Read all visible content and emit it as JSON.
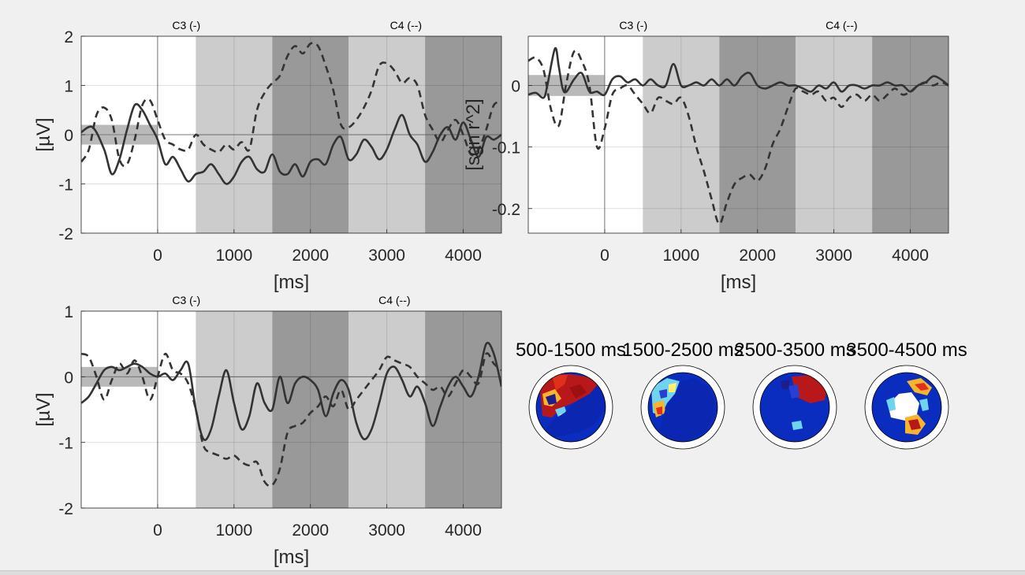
{
  "chart_data": [
    {
      "type": "line",
      "id": "erp-top",
      "xlabel": "[ms]",
      "ylabel": "[µV]",
      "xlim": [
        -1000,
        4500
      ],
      "ylim": [
        -2,
        2
      ],
      "xticks": [
        0,
        1000,
        2000,
        3000,
        4000
      ],
      "xtick_labels": [
        "0",
        "1000",
        "2000",
        "3000",
        "4000"
      ],
      "yticks": [
        2,
        1,
        0,
        -1,
        -2
      ],
      "ytick_labels": [
        "2",
        "1",
        "0",
        "-1",
        "-2"
      ],
      "baseline_band": [
        -0.2,
        0.2
      ],
      "shaded_intervals": [
        {
          "from": 500,
          "to": 1500,
          "color": "#cccccc"
        },
        {
          "from": 1500,
          "to": 2500,
          "color": "#999999"
        },
        {
          "from": 2500,
          "to": 3500,
          "color": "#cccccc"
        },
        {
          "from": 3500,
          "to": 4500,
          "color": "#999999"
        }
      ],
      "channel_labels": [
        {
          "text": "C3 (-)",
          "x": 375
        },
        {
          "text": "C4 (--)",
          "x": 3250
        }
      ],
      "series": [
        {
          "name": "C3 (-)",
          "style": "solid",
          "x": [
            -1000,
            -850,
            -700,
            -600,
            -500,
            -400,
            -300,
            -200,
            -100,
            0,
            100,
            200,
            300,
            400,
            500,
            600,
            700,
            800,
            900,
            1000,
            1100,
            1200,
            1300,
            1400,
            1500,
            1600,
            1700,
            1800,
            1900,
            2000,
            2100,
            2200,
            2300,
            2400,
            2500,
            2600,
            2700,
            2800,
            2900,
            3000,
            3100,
            3200,
            3300,
            3400,
            3500,
            3600,
            3700,
            3800,
            3900,
            4000,
            4100,
            4200,
            4300,
            4400,
            4500
          ],
          "values": [
            0.05,
            0.15,
            -0.3,
            -0.8,
            -0.5,
            0.1,
            0.6,
            0.5,
            0.2,
            -0.1,
            -0.6,
            -0.45,
            -0.7,
            -0.95,
            -0.8,
            -0.75,
            -0.6,
            -0.8,
            -1.0,
            -0.85,
            -0.55,
            -0.45,
            -0.7,
            -0.75,
            -0.4,
            -0.75,
            -0.8,
            -0.6,
            -0.85,
            -0.55,
            -0.5,
            -0.6,
            -0.2,
            -0.05,
            -0.5,
            -0.4,
            -0.1,
            -0.25,
            -0.5,
            -0.3,
            0.1,
            0.4,
            0.0,
            -0.2,
            -0.55,
            -0.35,
            0.0,
            0.15,
            -0.1,
            0.25,
            -0.1,
            -0.45,
            -0.05,
            -0.1,
            0.0
          ]
        },
        {
          "name": "C4 (--)",
          "style": "dashed",
          "x": [
            -1000,
            -900,
            -800,
            -700,
            -600,
            -500,
            -400,
            -300,
            -200,
            -100,
            0,
            100,
            200,
            300,
            400,
            500,
            600,
            700,
            800,
            900,
            1000,
            1100,
            1200,
            1300,
            1400,
            1500,
            1600,
            1700,
            1800,
            1900,
            2000,
            2100,
            2200,
            2300,
            2400,
            2500,
            2600,
            2700,
            2800,
            2900,
            3000,
            3100,
            3200,
            3300,
            3400,
            3500,
            3600,
            3700,
            3800,
            3900,
            4000,
            4100,
            4200,
            4300,
            4400,
            4500
          ],
          "values": [
            -0.55,
            -0.3,
            0.4,
            0.55,
            0.3,
            -0.5,
            -0.6,
            -0.1,
            0.6,
            0.7,
            0.3,
            -0.1,
            -0.2,
            -0.3,
            -0.3,
            0.0,
            -0.2,
            -0.3,
            -0.35,
            -0.2,
            -0.3,
            -0.15,
            -0.3,
            0.5,
            0.85,
            1.05,
            1.2,
            1.6,
            1.8,
            1.65,
            1.85,
            1.8,
            1.4,
            0.9,
            0.2,
            0.15,
            0.3,
            0.55,
            0.9,
            1.4,
            1.45,
            1.3,
            1.05,
            1.15,
            1.0,
            0.4,
            0.1,
            -0.15,
            0.1,
            0.3,
            0.0,
            -0.4,
            -0.3,
            0.1,
            0.6,
            0.65
          ]
        }
      ]
    },
    {
      "type": "line",
      "id": "r2-top-right",
      "xlabel": "[ms]",
      "ylabel": "[sgn r^2]",
      "xlim": [
        -1000,
        4500
      ],
      "ylim": [
        -0.24,
        0.08
      ],
      "xticks": [
        0,
        1000,
        2000,
        3000,
        4000
      ],
      "xtick_labels": [
        "0",
        "1000",
        "2000",
        "3000",
        "4000"
      ],
      "yticks": [
        0,
        -0.1,
        -0.2
      ],
      "ytick_labels": [
        "0",
        "-0.1",
        "-0.2"
      ],
      "baseline_band": [
        -0.017,
        0.017
      ],
      "shaded_intervals": [
        {
          "from": 500,
          "to": 1500,
          "color": "#cccccc"
        },
        {
          "from": 1500,
          "to": 2500,
          "color": "#999999"
        },
        {
          "from": 2500,
          "to": 3500,
          "color": "#cccccc"
        },
        {
          "from": 3500,
          "to": 4500,
          "color": "#999999"
        }
      ],
      "channel_labels": [
        {
          "text": "C3 (-)",
          "x": 375
        },
        {
          "text": "C4 (--)",
          "x": 3100
        }
      ],
      "series": [
        {
          "name": "C3 (-)",
          "style": "solid",
          "x": [
            -1000,
            -900,
            -800,
            -750,
            -650,
            -600,
            -550,
            -500,
            -400,
            -300,
            -200,
            -100,
            0,
            100,
            200,
            300,
            400,
            500,
            600,
            700,
            800,
            900,
            1000,
            1100,
            1200,
            1300,
            1400,
            1500,
            1600,
            1700,
            1800,
            1900,
            2000,
            2100,
            2200,
            2300,
            2400,
            2500,
            2600,
            2700,
            2800,
            2900,
            3000,
            3100,
            3200,
            3300,
            3400,
            3500,
            3600,
            3700,
            3800,
            3900,
            4000,
            4100,
            4200,
            4300,
            4400,
            4500
          ],
          "values": [
            -0.015,
            -0.012,
            -0.02,
            0.0,
            0.06,
            0.03,
            -0.005,
            -0.01,
            0.01,
            0.02,
            -0.01,
            -0.01,
            -0.015,
            0.01,
            0.015,
            0.005,
            0.01,
            0.0,
            0.01,
            0.0,
            0.0,
            0.035,
            0.0,
            0.0,
            0.005,
            0.0,
            0.01,
            0.0,
            0.01,
            0.0,
            0.015,
            0.02,
            0.0,
            -0.005,
            0.0,
            0.005,
            0.0,
            0.0,
            -0.005,
            -0.01,
            0.0,
            -0.005,
            0.005,
            -0.01,
            0.0,
            0.0,
            -0.005,
            0.0,
            0.0,
            0.005,
            0.0,
            0.0,
            -0.01,
            0.0,
            0.005,
            0.015,
            0.01,
            0.0
          ]
        },
        {
          "name": "C4 (--)",
          "style": "dashed",
          "x": [
            -1000,
            -900,
            -800,
            -700,
            -600,
            -500,
            -400,
            -300,
            -200,
            -100,
            0,
            100,
            200,
            300,
            400,
            500,
            600,
            700,
            800,
            900,
            1000,
            1100,
            1200,
            1300,
            1400,
            1500,
            1600,
            1700,
            1800,
            1900,
            2000,
            2100,
            2200,
            2300,
            2400,
            2500,
            2600,
            2700,
            2800,
            2900,
            3000,
            3100,
            3200,
            3300,
            3400,
            3500,
            3600,
            3700,
            3800,
            3900,
            4000,
            4100,
            4200,
            4300,
            4400,
            4500
          ],
          "values": [
            0.04,
            0.045,
            0.025,
            -0.04,
            -0.065,
            0.005,
            0.055,
            0.04,
            0.0,
            -0.1,
            -0.07,
            -0.015,
            -0.005,
            0.0,
            -0.015,
            -0.03,
            -0.045,
            -0.02,
            -0.025,
            -0.03,
            -0.02,
            -0.05,
            -0.1,
            -0.14,
            -0.185,
            -0.225,
            -0.19,
            -0.16,
            -0.15,
            -0.145,
            -0.155,
            -0.135,
            -0.095,
            -0.07,
            -0.035,
            -0.005,
            -0.01,
            -0.015,
            -0.01,
            -0.025,
            -0.02,
            -0.035,
            -0.02,
            -0.015,
            -0.025,
            -0.015,
            -0.025,
            -0.015,
            -0.005,
            -0.015,
            -0.01,
            0.0,
            0.005,
            0.0,
            0.005,
            0.0
          ]
        }
      ]
    },
    {
      "type": "line",
      "id": "erp-bottom",
      "xlabel": "[ms]",
      "ylabel": "[µV]",
      "xlim": [
        -1000,
        4500
      ],
      "ylim": [
        -2,
        1
      ],
      "xticks": [
        0,
        1000,
        2000,
        3000,
        4000
      ],
      "xtick_labels": [
        "0",
        "1000",
        "2000",
        "3000",
        "4000"
      ],
      "yticks": [
        1,
        0,
        -1,
        -2
      ],
      "ytick_labels": [
        "1",
        "0",
        "-1",
        "-2"
      ],
      "baseline_band": [
        -0.15,
        0.15
      ],
      "shaded_intervals": [
        {
          "from": 500,
          "to": 1500,
          "color": "#cccccc"
        },
        {
          "from": 1500,
          "to": 2500,
          "color": "#999999"
        },
        {
          "from": 2500,
          "to": 3500,
          "color": "#cccccc"
        },
        {
          "from": 3500,
          "to": 4500,
          "color": "#999999"
        }
      ],
      "channel_labels": [
        {
          "text": "C3 (-)",
          "x": 375
        },
        {
          "text": "C4 (--)",
          "x": 3100
        }
      ],
      "series": [
        {
          "name": "C3 (-)",
          "style": "solid",
          "x": [
            -1000,
            -900,
            -800,
            -700,
            -600,
            -500,
            -400,
            -300,
            -200,
            -100,
            0,
            100,
            200,
            300,
            400,
            500,
            600,
            700,
            800,
            900,
            1000,
            1100,
            1200,
            1300,
            1400,
            1500,
            1600,
            1700,
            1800,
            1900,
            2000,
            2100,
            2200,
            2300,
            2400,
            2500,
            2600,
            2700,
            2800,
            2900,
            3000,
            3100,
            3200,
            3300,
            3400,
            3500,
            3600,
            3700,
            3800,
            3900,
            4000,
            4100,
            4200,
            4300,
            4400,
            4500
          ],
          "values": [
            -0.4,
            -0.3,
            -0.1,
            0.1,
            0.15,
            0.1,
            0.15,
            0.2,
            0.15,
            0.05,
            0.0,
            0.05,
            -0.05,
            0.1,
            0.2,
            -0.5,
            -0.95,
            -0.8,
            -0.3,
            0.1,
            -0.4,
            -0.8,
            -0.6,
            -0.1,
            -0.4,
            -0.5,
            0.0,
            -0.4,
            -0.1,
            0.0,
            -0.05,
            -0.2,
            -0.6,
            -0.25,
            -0.05,
            -0.2,
            -0.7,
            -0.95,
            -0.8,
            -0.4,
            0.05,
            0.15,
            -0.05,
            -0.3,
            -0.15,
            -0.4,
            -0.75,
            -0.45,
            -0.15,
            0.0,
            -0.15,
            -0.3,
            0.0,
            0.5,
            0.35,
            -0.15
          ]
        },
        {
          "name": "C4 (--)",
          "style": "dashed",
          "x": [
            -1000,
            -900,
            -800,
            -700,
            -600,
            -500,
            -400,
            -300,
            -200,
            -100,
            0,
            100,
            200,
            300,
            400,
            500,
            600,
            700,
            800,
            900,
            1000,
            1100,
            1200,
            1300,
            1400,
            1500,
            1600,
            1700,
            1800,
            1900,
            2000,
            2100,
            2200,
            2300,
            2400,
            2500,
            2600,
            2700,
            2800,
            2900,
            3000,
            3100,
            3200,
            3300,
            3400,
            3500,
            3600,
            3700,
            3800,
            3900,
            4000,
            4100,
            4200,
            4300,
            4400,
            4500
          ],
          "values": [
            0.35,
            0.3,
            0.0,
            -0.35,
            -0.05,
            0.2,
            0.05,
            0.25,
            0.0,
            -0.35,
            0.0,
            0.35,
            0.1,
            0.05,
            -0.1,
            -0.5,
            -1.05,
            -1.15,
            -1.2,
            -1.25,
            -1.2,
            -1.3,
            -1.35,
            -1.3,
            -1.6,
            -1.65,
            -1.4,
            -0.85,
            -0.75,
            -0.7,
            -0.55,
            -0.45,
            -0.3,
            -0.45,
            -0.2,
            -0.5,
            -0.35,
            -0.2,
            -0.05,
            0.1,
            0.3,
            0.25,
            0.2,
            0.15,
            0.0,
            -0.1,
            -0.2,
            -0.15,
            -0.3,
            -0.1,
            0.1,
            0.0,
            -0.1,
            0.35,
            0.2,
            0.1
          ]
        }
      ]
    },
    {
      "type": "heatmap",
      "id": "scalp-maps",
      "description_kind": "topographic scalp maps",
      "colormap": "jet",
      "maps": [
        {
          "title": "500-1500 ms"
        },
        {
          "title": "1500-2500 ms"
        },
        {
          "title": "2500-3500 ms"
        },
        {
          "title": "3500-4500 ms"
        }
      ]
    }
  ]
}
